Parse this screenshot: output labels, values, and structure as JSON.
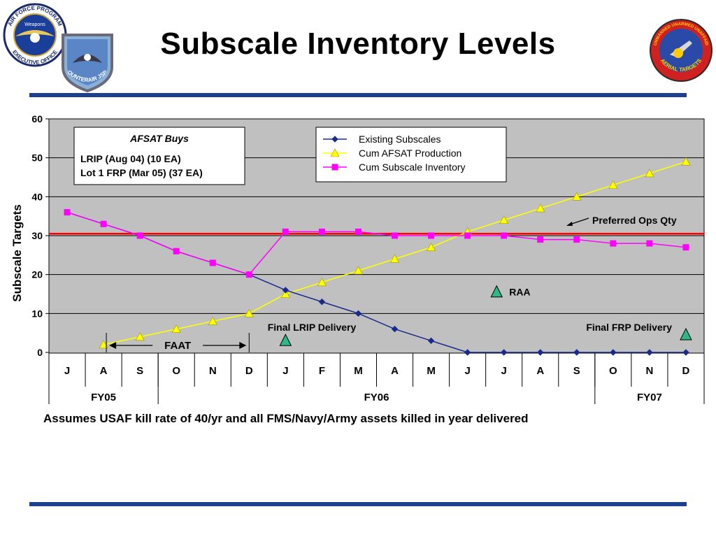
{
  "page": {
    "title": "Subscale Inventory Levels",
    "footnote": "Assumes USAF kill rate of 40/yr and all FMS/Navy/Army assets killed in year delivered"
  },
  "logos": {
    "left1_top": "AIR FORCE PROGRAM",
    "left1_bottom": "EXECUTIVE OFFICE",
    "left1_center": "Weapons",
    "left2_text": "COUNTERAIR JSPO",
    "right_top": "UNMANNED UNARMED UNAFFAID",
    "right_bottom": "AERIAL TARGETS"
  },
  "chart_data": {
    "type": "line",
    "ylabel": "Subscale Targets",
    "xlabel": "",
    "ylim": [
      0,
      60
    ],
    "yticks": [
      0,
      10,
      20,
      30,
      40,
      50,
      60
    ],
    "categories": [
      "J",
      "A",
      "S",
      "O",
      "N",
      "D",
      "J",
      "F",
      "M",
      "A",
      "M",
      "J",
      "J",
      "A",
      "S",
      "O",
      "N",
      "D"
    ],
    "fiscal_years": [
      {
        "label": "FY05",
        "start": 0,
        "end": 2
      },
      {
        "label": "FY06",
        "start": 3,
        "end": 14
      },
      {
        "label": "FY07",
        "start": 15,
        "end": 17
      }
    ],
    "grid": true,
    "legend_position": "top-right",
    "series": [
      {
        "name": "Existing Subscales",
        "color": "#1a2a8a",
        "marker": "diamond",
        "values": [
          36,
          33,
          30,
          26,
          23,
          20,
          16,
          13,
          10,
          6,
          3,
          0,
          0,
          0,
          0,
          0,
          0,
          0
        ]
      },
      {
        "name": "Cum AFSAT Production",
        "color": "#ffff00",
        "marker": "triangle",
        "values": [
          null,
          2,
          4,
          6,
          8,
          10,
          15,
          18,
          21,
          24,
          27,
          31,
          34,
          37,
          40,
          43,
          46,
          49
        ]
      },
      {
        "name": "Cum Subscale Inventory",
        "color": "#ff00ff",
        "marker": "square",
        "values": [
          36,
          33,
          30,
          26,
          23,
          20,
          31,
          31,
          31,
          30,
          30,
          30,
          30,
          29,
          29,
          28,
          28,
          27
        ]
      }
    ],
    "reference_line": {
      "label": "Preferred Ops Qty",
      "value": 30.5,
      "color": "#ff0000"
    },
    "milestones": [
      {
        "label": "Final LRIP Delivery",
        "x_index": 6,
        "y": 3
      },
      {
        "label": "RAA",
        "x_index": 11.8,
        "y": 15.5
      },
      {
        "label": "Final FRP Delivery",
        "x_index": 17,
        "y": 4.5
      }
    ],
    "faat": {
      "label": "FAAT",
      "from_index": 1,
      "to_index": 5
    },
    "annotation_box": {
      "title": "AFSAT Buys",
      "lines": [
        "LRIP (Aug 04) (10 EA)",
        "Lot 1 FRP (Mar 05) (37 EA)"
      ]
    },
    "colors": {
      "plot_bg": "#c0c0c0",
      "milestone_marker": "#2db886"
    }
  }
}
